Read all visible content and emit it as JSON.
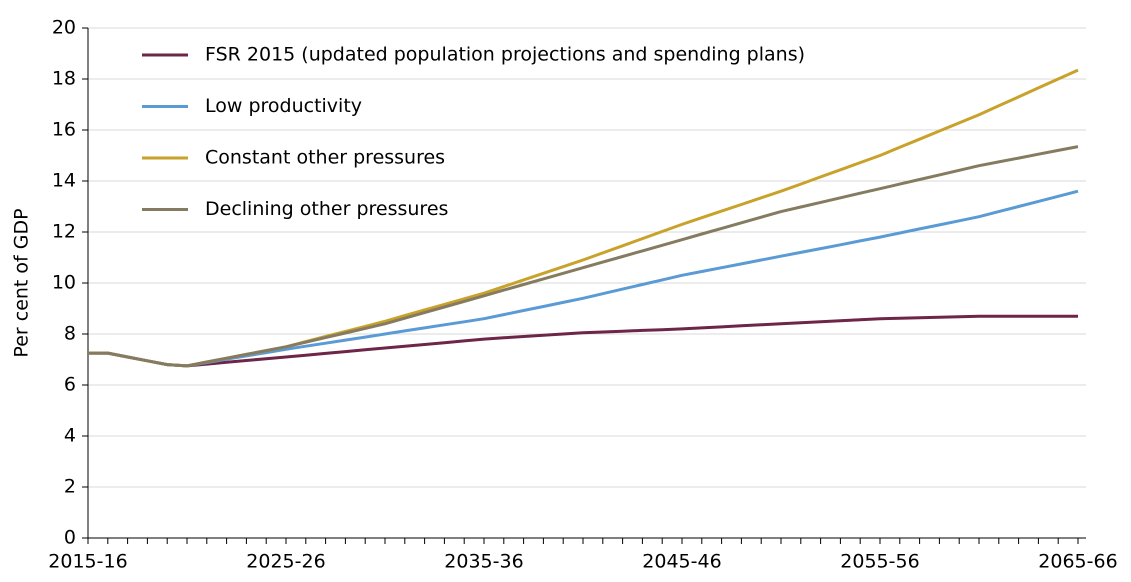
{
  "chart_data": {
    "type": "line",
    "ylabel": "Per cent of GDP",
    "categories": [
      "2015-16",
      null,
      null,
      null,
      null,
      null,
      null,
      null,
      null,
      null,
      "2025-26",
      null,
      null,
      null,
      null,
      null,
      null,
      null,
      null,
      null,
      "2035-36",
      null,
      null,
      null,
      null,
      null,
      null,
      null,
      null,
      null,
      "2045-46",
      null,
      null,
      null,
      null,
      null,
      null,
      null,
      null,
      null,
      "2055-56",
      null,
      null,
      null,
      null,
      null,
      null,
      null,
      null,
      null,
      "2065-66"
    ],
    "series": [
      {
        "name": "FSR 2015 (updated population projections and spending plans)",
        "color": "#6d2548",
        "values": [
          7.25,
          7.25,
          7.1,
          6.95,
          6.8,
          6.75,
          6.82,
          6.89,
          6.96,
          7.03,
          7.1,
          7.17,
          7.24,
          7.31,
          7.38,
          7.45,
          7.52,
          7.59,
          7.66,
          7.73,
          7.8,
          7.85,
          7.9,
          7.95,
          8.0,
          8.05,
          8.08,
          8.11,
          8.14,
          8.17,
          8.2,
          8.24,
          8.28,
          8.32,
          8.36,
          8.4,
          8.44,
          8.48,
          8.52,
          8.56,
          8.6,
          8.62,
          8.64,
          8.66,
          8.68,
          8.7,
          8.7,
          8.7,
          8.7,
          8.7,
          8.7
        ]
      },
      {
        "name": "Low productivity",
        "color": "#5b9bd5",
        "values": [
          7.25,
          7.25,
          7.1,
          6.95,
          6.8,
          6.75,
          6.88,
          7.01,
          7.14,
          7.27,
          7.4,
          7.52,
          7.64,
          7.76,
          7.88,
          8.0,
          8.12,
          8.24,
          8.36,
          8.48,
          8.6,
          8.76,
          8.92,
          9.08,
          9.24,
          9.4,
          9.58,
          9.76,
          9.94,
          10.12,
          10.3,
          10.45,
          10.6,
          10.75,
          10.9,
          11.05,
          11.2,
          11.35,
          11.5,
          11.65,
          11.8,
          11.96,
          12.12,
          12.28,
          12.44,
          12.6,
          12.8,
          13.0,
          13.2,
          13.4,
          13.6
        ]
      },
      {
        "name": "Constant other pressures",
        "color": "#c8a22a",
        "values": [
          7.25,
          7.25,
          7.1,
          6.95,
          6.8,
          6.75,
          6.9,
          7.05,
          7.2,
          7.35,
          7.5,
          7.7,
          7.9,
          8.1,
          8.3,
          8.5,
          8.72,
          8.94,
          9.16,
          9.38,
          9.6,
          9.86,
          10.12,
          10.38,
          10.64,
          10.9,
          11.18,
          11.46,
          11.74,
          12.02,
          12.3,
          12.56,
          12.82,
          13.08,
          13.34,
          13.6,
          13.88,
          14.16,
          14.44,
          14.72,
          15.0,
          15.32,
          15.64,
          15.96,
          16.28,
          16.6,
          16.95,
          17.3,
          17.65,
          18.0,
          18.35
        ]
      },
      {
        "name": "Declining other pressures",
        "color": "#857b60",
        "values": [
          7.25,
          7.25,
          7.1,
          6.95,
          6.8,
          6.75,
          6.9,
          7.05,
          7.2,
          7.35,
          7.5,
          7.68,
          7.86,
          8.04,
          8.22,
          8.4,
          8.62,
          8.84,
          9.06,
          9.28,
          9.5,
          9.72,
          9.94,
          10.16,
          10.38,
          10.6,
          10.82,
          11.04,
          11.26,
          11.48,
          11.7,
          11.92,
          12.14,
          12.36,
          12.58,
          12.8,
          12.98,
          13.16,
          13.34,
          13.52,
          13.7,
          13.88,
          14.06,
          14.24,
          14.42,
          14.6,
          14.75,
          14.9,
          15.05,
          15.2,
          15.35
        ]
      }
    ],
    "ylim": [
      0,
      20
    ],
    "yticks": [
      0,
      2,
      4,
      6,
      8,
      10,
      12,
      14,
      16,
      18,
      20
    ],
    "grid": true
  }
}
